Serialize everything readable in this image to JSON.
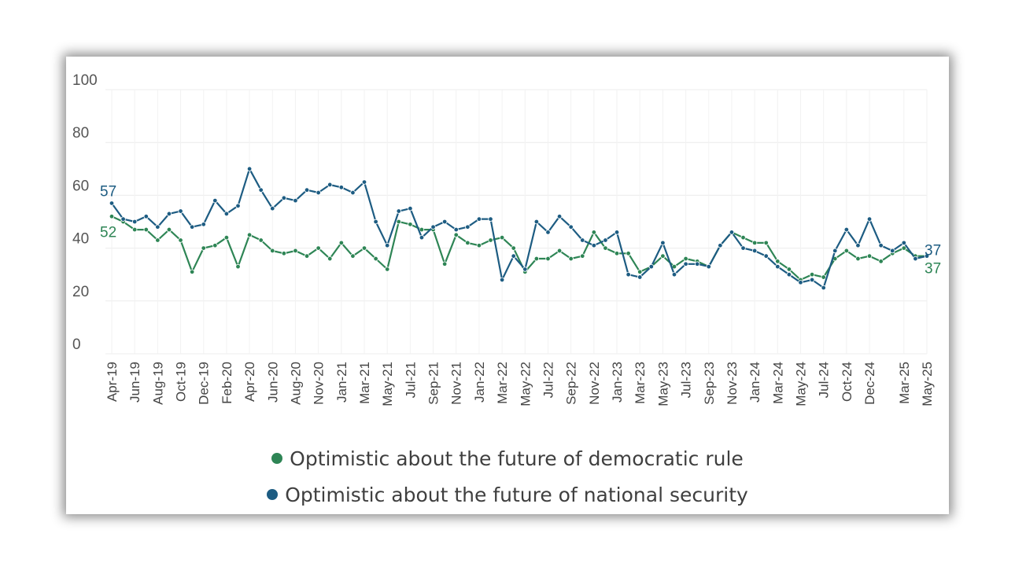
{
  "chart_data": {
    "type": "line",
    "categories": [
      "Apr-19",
      "May-19",
      "Jun-19",
      "Jul-19",
      "Aug-19",
      "Sep-19",
      "Oct-19",
      "Nov-19",
      "Dec-19",
      "Jan-20",
      "Feb-20",
      "Mar-20",
      "Apr-20",
      "May-20",
      "Jun-20",
      "Jul-20",
      "Aug-20",
      "Sep-20",
      "Nov-20",
      "Dec-20",
      "Jan-21",
      "Feb-21",
      "Mar-21",
      "Apr-21",
      "May-21",
      "Jun-21",
      "Jul-21",
      "Aug-21",
      "Sep-21",
      "Oct-21",
      "Nov-21",
      "Dec-21",
      "Jan-22",
      "Feb-22",
      "Mar-22",
      "Apr-22",
      "May-22",
      "Jun-22",
      "Jul-22",
      "Aug-22",
      "Sep-22",
      "Oct-22",
      "Nov-22",
      "Dec-22",
      "Jan-23",
      "Feb-23",
      "Mar-23",
      "Apr-23",
      "May-23",
      "Jun-23",
      "Jul-23",
      "Aug-23",
      "Sep-23",
      "Oct-23",
      "Nov-23",
      "Dec-23",
      "Jan-24",
      "Feb-24",
      "Mar-24",
      "Apr-24",
      "May-24",
      "Jun-24",
      "Jul-24",
      "Aug-24",
      "Oct-24",
      "Nov-24",
      "Dec-24",
      "Jan-25",
      "Feb-25",
      "Mar-25",
      "Apr-25",
      "May-25"
    ],
    "x_tick_labels": [
      "Apr-19",
      "Jun-19",
      "Aug-19",
      "Oct-19",
      "Dec-19",
      "Feb-20",
      "Apr-20",
      "Jun-20",
      "Aug-20",
      "Nov-20",
      "Jan-21",
      "Mar-21",
      "May-21",
      "Jul-21",
      "Sep-21",
      "Nov-21",
      "Jan-22",
      "Mar-22",
      "May-22",
      "Jul-22",
      "Sep-22",
      "Nov-22",
      "Jan-23",
      "Mar-23",
      "May-23",
      "Jul-23",
      "Sep-23",
      "Nov-23",
      "Jan-24",
      "Mar-24",
      "May-24",
      "Jul-24",
      "Oct-24",
      "Dec-24",
      "Mar-25",
      "May-25"
    ],
    "y_ticks": [
      0,
      20,
      40,
      60,
      80,
      100
    ],
    "ylim": [
      0,
      100
    ],
    "grid": true,
    "legend_position": "bottom",
    "series": [
      {
        "name": "Optimistic about the future of democratic rule",
        "color": "#2e8555",
        "end_labels": [
          "52",
          "37"
        ],
        "values": [
          52,
          50,
          47,
          47,
          43,
          47,
          43,
          31,
          40,
          41,
          44,
          33,
          45,
          43,
          39,
          38,
          39,
          37,
          40,
          36,
          42,
          37,
          40,
          36,
          32,
          50,
          49,
          47,
          47,
          34,
          45,
          42,
          41,
          43,
          44,
          40,
          31,
          36,
          36,
          39,
          36,
          37,
          46,
          40,
          38,
          38,
          31,
          33,
          37,
          33,
          36,
          35,
          33,
          41,
          46,
          44,
          42,
          42,
          35,
          32,
          28,
          30,
          29,
          36,
          39,
          36,
          37,
          35,
          38,
          40,
          37,
          37
        ]
      },
      {
        "name": "Optimistic about the future of national security",
        "color": "#1d5c82",
        "end_labels": [
          "57",
          "37"
        ],
        "values": [
          57,
          51,
          50,
          52,
          48,
          53,
          54,
          48,
          49,
          58,
          53,
          56,
          70,
          62,
          55,
          59,
          58,
          62,
          61,
          64,
          63,
          61,
          65,
          50,
          41,
          54,
          55,
          44,
          48,
          50,
          47,
          48,
          51,
          51,
          28,
          37,
          32,
          50,
          46,
          52,
          48,
          43,
          41,
          43,
          46,
          30,
          29,
          33,
          42,
          30,
          34,
          34,
          33,
          41,
          46,
          40,
          39,
          37,
          33,
          30,
          27,
          28,
          25,
          39,
          47,
          41,
          51,
          41,
          39,
          42,
          36,
          37
        ]
      }
    ]
  }
}
